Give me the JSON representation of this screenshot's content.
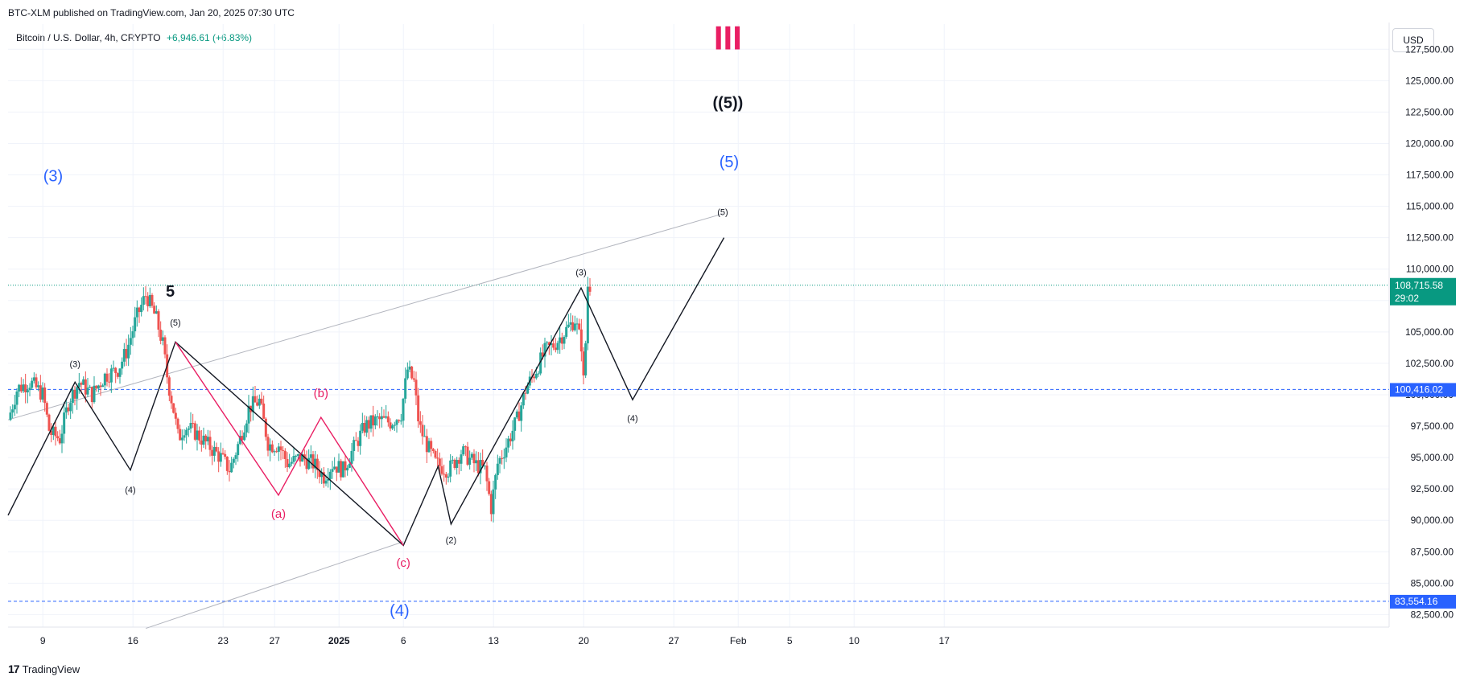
{
  "header": {
    "published": "BTC-XLM published on TradingView.com, Jan 20, 2025 07:30 UTC",
    "symbol": "Bitcoin / U.S. Dollar, 4h, CRYPTO",
    "change": "+6,946.61 (+6.83%)",
    "currency": "USD"
  },
  "footer": {
    "brand": "TradingView",
    "logo_icon": "tradingview-logo-icon"
  },
  "colors": {
    "up": "#26a69a",
    "down": "#ef5350",
    "wave_blue": "#2962ff",
    "wave_pink": "#e91e63",
    "grid": "#f0f3fa",
    "dash_line": "#2962ff",
    "price_tag": "#089981"
  },
  "chart_data": {
    "type": "candlestick",
    "ylim": [
      81500,
      129500
    ],
    "y_ticks": [
      "82,500.00",
      "85,000.00",
      "87,500.00",
      "90,000.00",
      "92,500.00",
      "95,000.00",
      "97,500.00",
      "100,000.00",
      "102,500.00",
      "105,000.00",
      "107,500.00",
      "110,000.00",
      "112,500.00",
      "115,000.00",
      "117,500.00",
      "120,000.00",
      "122,500.00",
      "125,000.00",
      "127,500.00"
    ],
    "y_tick_values": [
      82500,
      85000,
      87500,
      90000,
      92500,
      95000,
      97500,
      100000,
      102500,
      105000,
      107500,
      110000,
      112500,
      115000,
      117500,
      120000,
      122500,
      125000,
      127500
    ],
    "x_ticks": [
      {
        "label": "9",
        "day": 9
      },
      {
        "label": "16",
        "day": 16
      },
      {
        "label": "23",
        "day": 23
      },
      {
        "label": "27",
        "day": 27
      },
      {
        "label": "2025",
        "day": 32
      },
      {
        "label": "6",
        "day": 37
      },
      {
        "label": "13",
        "day": 44
      },
      {
        "label": "20",
        "day": 51
      },
      {
        "label": "27",
        "day": 58
      },
      {
        "label": "Feb",
        "day": 63
      },
      {
        "label": "5",
        "day": 67
      },
      {
        "label": "10",
        "day": 72
      },
      {
        "label": "17",
        "day": 79
      }
    ],
    "price_path": [
      [
        6.3,
        98000
      ],
      [
        7.0,
        100500
      ],
      [
        8.0,
        101000
      ],
      [
        9.0,
        100000
      ],
      [
        9.5,
        97000
      ],
      [
        10.3,
        96500
      ],
      [
        11.0,
        99500
      ],
      [
        11.8,
        101000
      ],
      [
        12.8,
        100000
      ],
      [
        13.8,
        101500
      ],
      [
        14.8,
        102000
      ],
      [
        15.5,
        103500
      ],
      [
        16.2,
        106000
      ],
      [
        17.0,
        108000
      ],
      [
        17.8,
        106000
      ],
      [
        18.3,
        104000
      ],
      [
        18.7,
        101000
      ],
      [
        19.1,
        99000
      ],
      [
        19.5,
        96500
      ],
      [
        20.0,
        97500
      ],
      [
        20.8,
        97000
      ],
      [
        21.8,
        96000
      ],
      [
        22.8,
        95000
      ],
      [
        23.5,
        94000
      ],
      [
        24.3,
        96500
      ],
      [
        25.0,
        99000
      ],
      [
        25.8,
        99500
      ],
      [
        26.5,
        96000
      ],
      [
        27.3,
        96000
      ],
      [
        28.0,
        94500
      ],
      [
        29.0,
        95000
      ],
      [
        30.0,
        94500
      ],
      [
        30.8,
        93500
      ],
      [
        31.5,
        94500
      ],
      [
        32.3,
        94000
      ],
      [
        33.0,
        95500
      ],
      [
        34.0,
        97500
      ],
      [
        35.0,
        98000
      ],
      [
        36.0,
        97800
      ],
      [
        36.8,
        98500
      ],
      [
        37.3,
        102000
      ],
      [
        37.8,
        101000
      ],
      [
        38.2,
        97500
      ],
      [
        38.8,
        96000
      ],
      [
        39.5,
        94500
      ],
      [
        40.5,
        94000
      ],
      [
        41.5,
        95500
      ],
      [
        42.5,
        94500
      ],
      [
        43.3,
        94000
      ],
      [
        43.8,
        91000
      ],
      [
        44.3,
        94500
      ],
      [
        45.0,
        96000
      ],
      [
        45.8,
        98000
      ],
      [
        46.5,
        100500
      ],
      [
        47.3,
        102000
      ],
      [
        48.0,
        103500
      ],
      [
        48.7,
        104000
      ],
      [
        49.5,
        105000
      ],
      [
        50.3,
        106000
      ],
      [
        50.8,
        104000
      ],
      [
        51.0,
        100500
      ],
      [
        51.3,
        108700
      ]
    ],
    "horizontal_lines": [
      {
        "value": 100416.02,
        "label": "100,416.02",
        "color": "#2962ff",
        "style": "dashed"
      },
      {
        "value": 83554.16,
        "label": "83,554.16",
        "color": "#2962ff",
        "style": "dashed"
      },
      {
        "value": 108715.58,
        "label": "108,715.58",
        "sublabel": "29:02",
        "color": "#089981",
        "style": "dotted"
      }
    ],
    "trendlines": [
      {
        "points": [
          [
            6.3,
            98000
          ],
          [
            61.8,
            114400
          ]
        ],
        "color": "#b2b5be"
      },
      {
        "points": [
          [
            17.0,
            81400
          ],
          [
            37.0,
            88300
          ]
        ],
        "color": "#b2b5be"
      }
    ],
    "wave_lines": [
      {
        "color": "#131722",
        "points": [
          [
            6.3,
            90400
          ],
          [
            11.5,
            101000
          ],
          [
            15.8,
            94000
          ],
          [
            19.3,
            104200
          ],
          [
            37.0,
            88000
          ],
          [
            39.7,
            94300
          ],
          [
            40.7,
            89700
          ],
          [
            50.8,
            108500
          ],
          [
            54.8,
            99600
          ],
          [
            61.9,
            112500
          ]
        ]
      },
      {
        "color": "#e91e63",
        "points": [
          [
            19.3,
            104200
          ],
          [
            27.3,
            92000
          ],
          [
            30.6,
            98200
          ],
          [
            37.0,
            88000
          ]
        ]
      }
    ],
    "wave_labels": [
      {
        "text": "(3)",
        "day": 11.5,
        "price": 102200,
        "size": 11,
        "color": "#131722"
      },
      {
        "text": "(4)",
        "day": 15.8,
        "price": 92200,
        "size": 11,
        "color": "#131722"
      },
      {
        "text": "(5)",
        "day": 19.3,
        "price": 105500,
        "size": 11,
        "color": "#131722"
      },
      {
        "text": "5",
        "day": 18.9,
        "price": 107800,
        "size": 20,
        "color": "#131722"
      },
      {
        "text": "(3)",
        "day": 9.8,
        "price": 117000,
        "size": 20,
        "color": "#2962ff"
      },
      {
        "text": "(a)",
        "day": 27.3,
        "price": 90200,
        "size": 15,
        "color": "#e91e63"
      },
      {
        "text": "(b)",
        "day": 30.6,
        "price": 99800,
        "size": 15,
        "color": "#e91e63"
      },
      {
        "text": "(c)",
        "day": 37.0,
        "price": 86300,
        "size": 15,
        "color": "#e91e63"
      },
      {
        "text": "(4)",
        "day": 36.7,
        "price": 82400,
        "size": 20,
        "color": "#2962ff"
      },
      {
        "text": "(2)",
        "day": 40.7,
        "price": 88200,
        "size": 11,
        "color": "#131722"
      },
      {
        "text": "(3)",
        "day": 50.8,
        "price": 109500,
        "size": 11,
        "color": "#131722"
      },
      {
        "text": "(4)",
        "day": 54.8,
        "price": 97900,
        "size": 11,
        "color": "#131722"
      },
      {
        "text": "(5)",
        "day": 61.8,
        "price": 114300,
        "size": 11,
        "color": "#131722"
      },
      {
        "text": "(5)",
        "day": 62.3,
        "price": 118100,
        "size": 20,
        "color": "#2962ff"
      },
      {
        "text": "((5))",
        "day": 62.2,
        "price": 122800,
        "size": 20,
        "color": "#131722"
      },
      {
        "text": "III",
        "day": 62.2,
        "price": 127500,
        "size": 42,
        "color": "#e91e63"
      }
    ]
  }
}
